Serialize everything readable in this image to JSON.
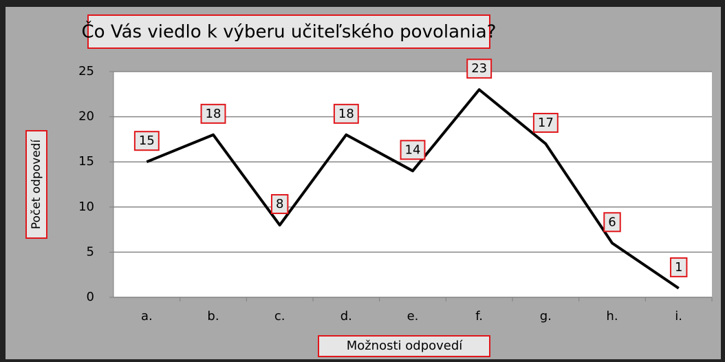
{
  "chart_data": {
    "type": "line",
    "title": "Čo Vás viedlo k výberu učiteľského povolania?",
    "x_label": "Možnosti odpovedí",
    "y_label": "Počet odpovedí",
    "categories": [
      "a.",
      "b.",
      "c.",
      "d.",
      "e.",
      "f.",
      "g.",
      "h.",
      "i."
    ],
    "values": [
      15,
      18,
      8,
      18,
      14,
      23,
      17,
      6,
      1
    ],
    "color": "#000000",
    "ylim": [
      0,
      25
    ],
    "yticks": [
      0,
      5,
      10,
      15,
      20,
      25
    ],
    "grid": true
  }
}
